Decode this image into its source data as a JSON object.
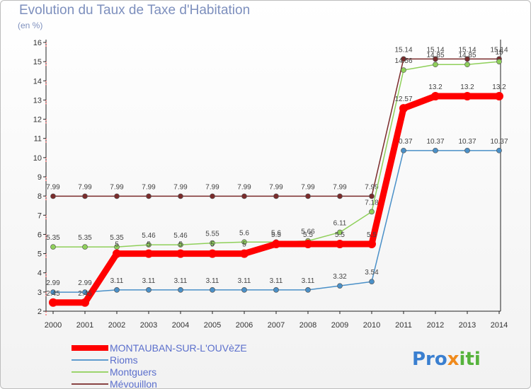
{
  "chart_data": {
    "type": "line",
    "title": "Evolution du Taux de Taxe d'Habitation",
    "ylabel": "(en %)",
    "xlabel": "",
    "x": [
      "2000",
      "2001",
      "2002",
      "2003",
      "2004",
      "2005",
      "2006",
      "2007",
      "2008",
      "2009",
      "2010",
      "2011",
      "2012",
      "2013",
      "2014"
    ],
    "ylim": [
      2,
      16
    ],
    "yticks": [
      2,
      3,
      4,
      5,
      6,
      7,
      8,
      9,
      10,
      11,
      12,
      13,
      14,
      15,
      16
    ],
    "grid": false,
    "legend_position": "bottom-left",
    "series": [
      {
        "name": "MONTAUBAN-SUR-L'OUVèZE",
        "color": "#ff0000",
        "values": [
          2.45,
          2.45,
          5.0,
          5.0,
          5.0,
          5.0,
          5.0,
          5.5,
          5.5,
          5.5,
          5.5,
          12.57,
          13.2,
          13.2,
          13.2
        ],
        "labels": [
          "2.45",
          "2.45",
          "5",
          "5",
          "5",
          "5",
          "5",
          "5.5",
          "5.5",
          "5.5",
          "5.5",
          "12.57",
          "13.2",
          "13.2",
          "13.2"
        ]
      },
      {
        "name": "Rioms",
        "color": "#4a90c8",
        "values": [
          2.99,
          2.99,
          3.11,
          3.11,
          3.11,
          3.11,
          3.11,
          3.11,
          3.11,
          3.32,
          3.54,
          10.37,
          10.37,
          10.37,
          10.37
        ],
        "labels": [
          "2.99",
          "2.99",
          "3.11",
          "3.11",
          "3.11",
          "3.11",
          "3.11",
          "3.11",
          "3.11",
          "3.32",
          "3.54",
          "10.37",
          "10.37",
          "10.37",
          "10.37"
        ]
      },
      {
        "name": "Montguers",
        "color": "#8fd05a",
        "values": [
          5.35,
          5.35,
          5.35,
          5.46,
          5.46,
          5.55,
          5.6,
          5.6,
          5.66,
          6.11,
          7.18,
          14.56,
          14.85,
          14.85,
          15
        ],
        "labels": [
          "5.35",
          "5.35",
          "5.35",
          "5.46",
          "5.46",
          "5.55",
          "5.6",
          "5.6",
          "5.66",
          "6.11",
          "7.18",
          "14.56",
          "14.85",
          "14.85",
          "15"
        ]
      },
      {
        "name": "Mévouillon",
        "color": "#7a2b2b",
        "values": [
          7.99,
          7.99,
          7.99,
          7.99,
          7.99,
          7.99,
          7.99,
          7.99,
          7.99,
          7.99,
          7.99,
          15.14,
          15.14,
          15.14,
          15.14
        ],
        "labels": [
          "7.99",
          "7.99",
          "7.99",
          "7.99",
          "7.99",
          "7.99",
          "7.99",
          "7.99",
          "7.99",
          "7.99",
          "7.99",
          "15.14",
          "15.14",
          "15.14",
          "15.14"
        ]
      }
    ]
  },
  "logo": {
    "part1": "Pro",
    "part2": "x",
    "part3": "iti",
    "color1": "#3a7fd0",
    "color2": "#f08a1c",
    "color3": "#56b33c"
  }
}
